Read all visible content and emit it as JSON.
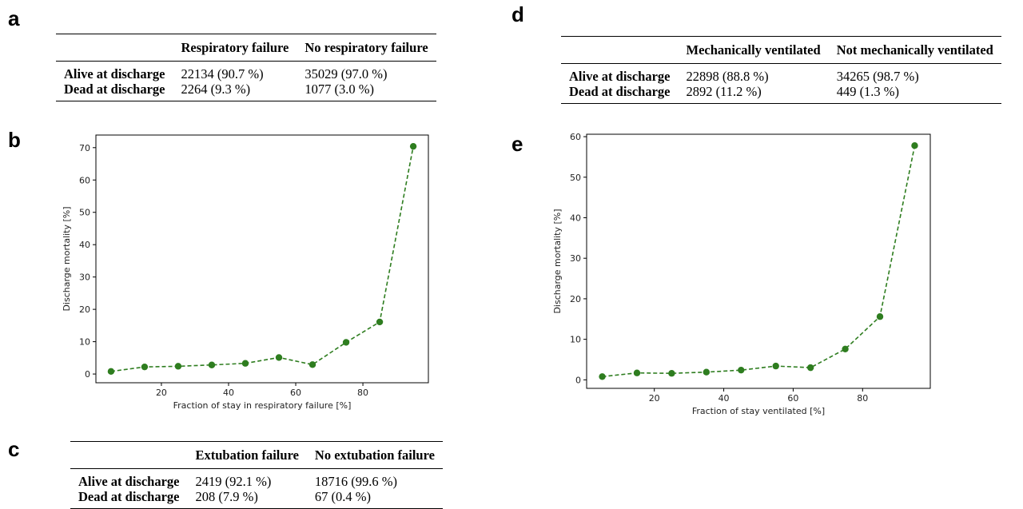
{
  "panels": {
    "a": "a",
    "b": "b",
    "c": "c",
    "d": "d",
    "e": "e"
  },
  "tables": {
    "a": {
      "headers": [
        "",
        "Respiratory failure",
        "No respiratory failure"
      ],
      "rows": [
        [
          "Alive at discharge",
          "22134 (90.7 %)",
          "35029 (97.0 %)"
        ],
        [
          "Dead at discharge",
          "2264 (9.3 %)",
          "1077 (3.0 %)"
        ]
      ]
    },
    "c": {
      "headers": [
        "",
        "Extubation failure",
        "No extubation failure"
      ],
      "rows": [
        [
          "Alive at discharge",
          "2419 (92.1 %)",
          "18716 (99.6 %)"
        ],
        [
          "Dead at discharge",
          "208 (7.9 %)",
          "67 (0.4 %)"
        ]
      ]
    },
    "d": {
      "headers": [
        "",
        "Mechanically ventilated",
        "Not mechanically ventilated"
      ],
      "rows": [
        [
          "Alive at discharge",
          "22898 (88.8 %)",
          "34265 (98.7 %)"
        ],
        [
          "Dead at discharge",
          "2892 (11.2 %)",
          "449 (1.3 %)"
        ]
      ]
    }
  },
  "colors": {
    "line": "#2e7d1f",
    "axis": "#000000"
  },
  "chart_data": [
    {
      "panel": "b",
      "type": "line",
      "style": "dashed line with circle markers",
      "x": [
        5,
        15,
        25,
        35,
        45,
        55,
        65,
        75,
        85,
        95
      ],
      "y": [
        0.8,
        2.2,
        2.4,
        2.8,
        3.3,
        5.1,
        2.9,
        9.8,
        16.1,
        70.4
      ],
      "xlabel": "Fraction of stay in respiratory failure [%]",
      "ylabel": "Discharge mortality [%]",
      "xlim": [
        0.5,
        99.5
      ],
      "ylim": [
        -2.7,
        73.9
      ],
      "xticks": [
        20,
        40,
        60,
        80
      ],
      "yticks": [
        0,
        10,
        20,
        30,
        40,
        50,
        60,
        70
      ],
      "grid": false
    },
    {
      "panel": "e",
      "type": "line",
      "style": "dashed line with circle markers",
      "x": [
        5,
        15,
        25,
        35,
        45,
        55,
        65,
        75,
        85,
        95
      ],
      "y": [
        0.8,
        1.7,
        1.6,
        1.9,
        2.4,
        3.4,
        3.0,
        7.6,
        15.6,
        57.8
      ],
      "xlabel": "Fraction of stay ventilated [%]",
      "ylabel": "Discharge mortality [%]",
      "xlim": [
        0.5,
        99.5
      ],
      "ylim": [
        -2.1,
        60.6
      ],
      "xticks": [
        20,
        40,
        60,
        80
      ],
      "yticks": [
        0,
        10,
        20,
        30,
        40,
        50,
        60
      ],
      "grid": false
    }
  ]
}
